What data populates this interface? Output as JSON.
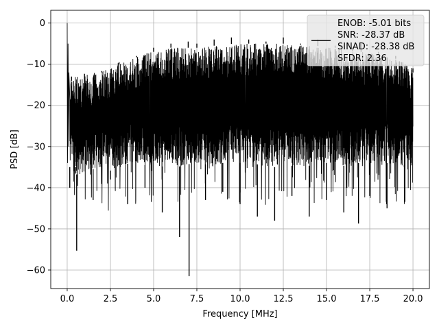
{
  "chart_data": {
    "type": "line",
    "xlabel": "Frequency [MHz]",
    "ylabel": "PSD [dB]",
    "xlim": [
      -0.95,
      20.95
    ],
    "ylim": [
      -64.5,
      3.1
    ],
    "x_ticks": [
      0.0,
      2.5,
      5.0,
      7.5,
      10.0,
      12.5,
      15.0,
      17.5,
      20.0
    ],
    "x_tick_labels": [
      "0.0",
      "2.5",
      "5.0",
      "7.5",
      "10.0",
      "12.5",
      "15.0",
      "17.5",
      "20.0"
    ],
    "y_ticks": [
      0,
      -10,
      -20,
      -30,
      -40,
      -50,
      -60
    ],
    "y_tick_labels": [
      "0",
      "−10",
      "−20",
      "−30",
      "−40",
      "−50",
      "−60"
    ],
    "grid": true,
    "legend_placement": "top-right",
    "legend": {
      "lines": [
        "ENOB: -5.01 bits",
        "SNR: -28.37 dB",
        "SINAD: -28.38 dB",
        "SFDR: 2.36"
      ]
    },
    "series": [
      {
        "color": "#000000",
        "x": [
          0.0,
          0.02,
          0.05,
          0.08,
          0.1,
          0.15,
          0.25,
          0.5,
          0.55,
          1.0,
          1.5,
          2.0,
          2.5,
          3.0,
          3.5,
          4.0,
          4.5,
          5.0,
          5.5,
          6.0,
          6.5,
          7.0,
          7.05,
          7.5,
          8.0,
          8.5,
          9.0,
          9.5,
          10.0,
          10.5,
          11.0,
          11.5,
          12.0,
          12.5,
          13.0,
          13.5,
          14.0,
          14.5,
          15.0,
          15.5,
          16.0,
          16.5,
          16.85,
          17.0,
          17.5,
          18.0,
          18.5,
          19.0,
          19.5,
          20.0
        ],
        "y": [
          0.0,
          -34.0,
          -5.0,
          -30.0,
          -12.0,
          -40.0,
          -14.0,
          -35.0,
          -55.3,
          -30.0,
          -43.0,
          -12.0,
          -38.0,
          -10.0,
          -44.0,
          -8.0,
          -40.0,
          -6.0,
          -46.0,
          -5.0,
          -52.0,
          -4.5,
          -61.5,
          -5.0,
          -43.0,
          -4.0,
          -41.0,
          -3.5,
          -44.0,
          -4.0,
          -47.0,
          -4.5,
          -48.0,
          -3.5,
          -42.0,
          -5.0,
          -47.0,
          -4.0,
          -43.0,
          -5.5,
          -46.0,
          -6.0,
          -48.7,
          -5.0,
          -42.0,
          -7.0,
          -45.0,
          -8.0,
          -35.0,
          -12.0
        ],
        "band_x": [
          0.15,
          0.6,
          1.2,
          1.8,
          2.4,
          3.0,
          3.6,
          4.2,
          4.8,
          5.4,
          6.0,
          6.6,
          7.2,
          7.8,
          8.4,
          9.0,
          9.6,
          10.2,
          10.8,
          11.4,
          12.0,
          12.6,
          13.2,
          13.8,
          14.4,
          15.0,
          15.6,
          16.2,
          16.8,
          17.4,
          18.0,
          18.6,
          19.2,
          19.8,
          20.0
        ],
        "band_upper": [
          -13,
          -13,
          -12,
          -12,
          -11,
          -9.5,
          -9,
          -8,
          -7,
          -7,
          -6,
          -6,
          -6,
          -6,
          -5.5,
          -5.5,
          -5,
          -5,
          -5,
          -5,
          -5,
          -5,
          -5,
          -5.5,
          -5.5,
          -6,
          -6,
          -6.5,
          -7,
          -7,
          -7.5,
          -8,
          -9,
          -10,
          -11
        ],
        "band_lower": [
          -35,
          -37,
          -36,
          -35,
          -36,
          -35,
          -34,
          -35,
          -34,
          -35,
          -34,
          -35,
          -34,
          -34,
          -35,
          -34,
          -34,
          -34,
          -34,
          -35,
          -35,
          -34,
          -35,
          -35,
          -34,
          -34,
          -34,
          -35,
          -34,
          -34,
          -34,
          -34,
          -35,
          -34,
          -35
        ]
      }
    ]
  }
}
